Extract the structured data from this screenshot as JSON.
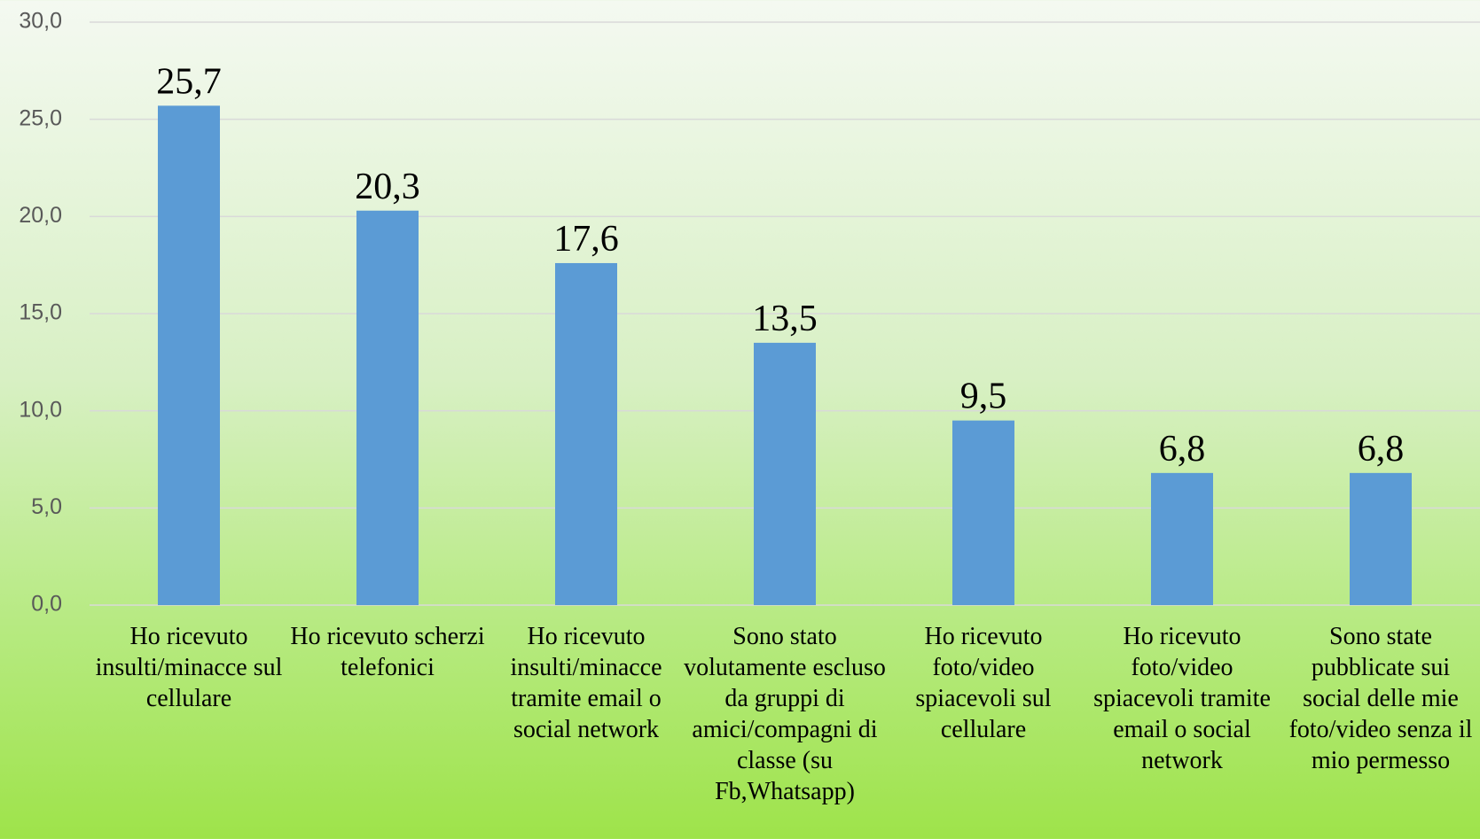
{
  "chart_data": {
    "type": "bar",
    "categories": [
      "Ho ricevuto insulti/minacce sul cellulare",
      "Ho ricevuto scherzi telefonici",
      "Ho ricevuto insulti/minacce tramite email o social network",
      "Sono stato volutamente escluso da gruppi di amici/compagni di classe (su Fb,Whatsapp)",
      "Ho ricevuto foto/video spiacevoli sul cellulare",
      "Ho ricevuto foto/video spiacevoli tramite email o social network",
      "Sono state pubblicate sui social delle mie foto/video senza il mio permesso"
    ],
    "values": [
      25.7,
      20.3,
      17.6,
      13.5,
      9.5,
      6.8,
      6.8
    ],
    "value_labels": [
      "25,7",
      "20,3",
      "17,6",
      "13,5",
      "9,5",
      "6,8",
      "6,8"
    ],
    "color": "#5b9bd5",
    "ylim": [
      0,
      30
    ],
    "yticks": [
      {
        "value": 0,
        "label": "0,0"
      },
      {
        "value": 5,
        "label": "5,0"
      },
      {
        "value": 10,
        "label": "10,0"
      },
      {
        "value": 15,
        "label": "15,0"
      },
      {
        "value": 20,
        "label": "20,0"
      },
      {
        "value": 25,
        "label": "25,0"
      },
      {
        "value": 30,
        "label": "30,0"
      }
    ],
    "grid": true
  }
}
